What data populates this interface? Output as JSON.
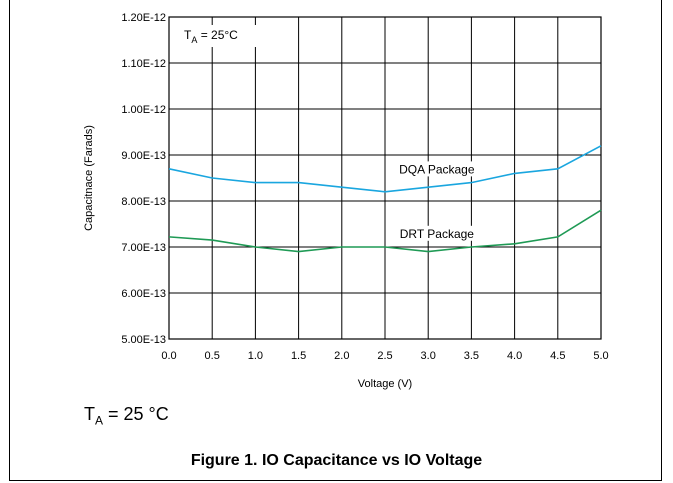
{
  "chart_data": {
    "type": "line",
    "xlabel": "Voltage (V)",
    "ylabel": "Capacitnace (Farads)",
    "xlim": [
      0,
      5
    ],
    "ylim": [
      5e-13,
      1.2e-12
    ],
    "grid": true,
    "x_ticks": [
      0,
      0.5,
      1.0,
      1.5,
      2.0,
      2.5,
      3.0,
      3.5,
      4.0,
      4.5,
      5.0
    ],
    "x_tick_labels": [
      "0.0",
      "0.5",
      "1.0",
      "1.5",
      "2.0",
      "2.5",
      "3.0",
      "3.5",
      "4.0",
      "4.5",
      "5.0"
    ],
    "y_ticks": [
      5e-13,
      6e-13,
      7e-13,
      8e-13,
      9e-13,
      1e-12,
      1.1e-12,
      1.2e-12
    ],
    "y_tick_labels": [
      "5.00E-13",
      "6.00E-13",
      "7.00E-13",
      "8.00E-13",
      "9.00E-13",
      "1.00E-12",
      "1.10E-12",
      "1.20E-12"
    ],
    "inset_label": {
      "main": "T",
      "sub": "A",
      "rest": " = 25°C"
    },
    "x": [
      0,
      0.5,
      1.0,
      1.5,
      2.0,
      2.5,
      3.0,
      3.5,
      4.0,
      4.5,
      5.0
    ],
    "series": [
      {
        "name": "DQA Package",
        "color": "#1aa6df",
        "values": [
          8.7e-13,
          8.5e-13,
          8.4e-13,
          8.4e-13,
          8.3e-13,
          8.2e-13,
          8.3e-13,
          8.4e-13,
          8.6e-13,
          8.7e-13,
          9.2e-13
        ]
      },
      {
        "name": "DRT Package",
        "color": "#1f9a55",
        "values": [
          7.22e-13,
          7.15e-13,
          7e-13,
          6.9e-13,
          7e-13,
          7e-13,
          6.9e-13,
          7e-13,
          7.07e-13,
          7.22e-13,
          7.8e-13
        ]
      }
    ]
  },
  "condition": {
    "main": "T",
    "sub": "A",
    "rest": " = 25 °C"
  },
  "caption": "Figure 1. IO Capacitance vs IO Voltage"
}
